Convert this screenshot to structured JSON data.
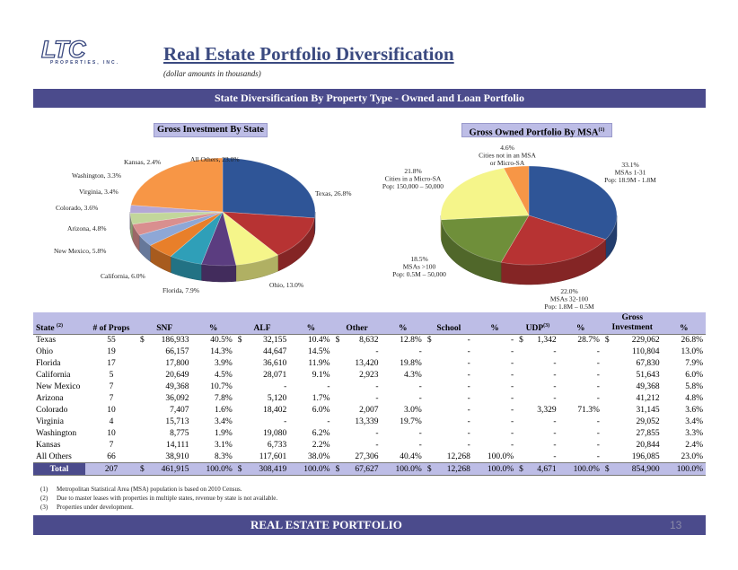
{
  "logo": {
    "brand": "LTC",
    "tagline": "PROPERTIES, INC."
  },
  "title": "Real Estate Portfolio Diversification",
  "subtitle": "(dollar amounts in thousands)",
  "banner": "State Diversification By Property Type - Owned and Loan Portfolio",
  "chart_data": [
    {
      "type": "pie",
      "title": "Gross Investment By State",
      "slices": [
        {
          "label": "Texas, 26.8%",
          "value": 26.8,
          "color": "#2f5597"
        },
        {
          "label": "Ohio, 13.0%",
          "value": 13.0,
          "color": "#b73333"
        },
        {
          "label": "Florida, 7.9%",
          "value": 7.9,
          "color": "#f5f58a"
        },
        {
          "label": "California, 6.0%",
          "value": 6.0,
          "color": "#5b3d80"
        },
        {
          "label": "New Mexico, 5.8%",
          "value": 5.8,
          "color": "#2f9fb8"
        },
        {
          "label": "Arizona, 4.8%",
          "value": 4.8,
          "color": "#e87f2a"
        },
        {
          "label": "Colorado, 3.6%",
          "value": 3.6,
          "color": "#8ea7d6"
        },
        {
          "label": "Virginia, 3.4%",
          "value": 3.4,
          "color": "#d98f8f"
        },
        {
          "label": "Washington, 3.3%",
          "value": 3.3,
          "color": "#c2d69b"
        },
        {
          "label": "Kansas, 2.4%",
          "value": 2.4,
          "color": "#b4a7d6"
        },
        {
          "label": "All Others, 23.0%",
          "value": 23.0,
          "color": "#f79646"
        }
      ]
    },
    {
      "type": "pie",
      "title": "Gross Owned Portfolio By MSA",
      "title_sup": "(1)",
      "slices": [
        {
          "label": [
            "33.1%",
            "MSAs 1-31",
            "Pop: 18.9M - 1.8M"
          ],
          "value": 33.1,
          "color": "#2f5597"
        },
        {
          "label": [
            "22.0%",
            "MSAs 32-100",
            "Pop: 1.8M – 0.5M"
          ],
          "value": 22.0,
          "color": "#b73333"
        },
        {
          "label": [
            "18.5%",
            "MSAs >100",
            "Pop: 0.5M – 50,000"
          ],
          "value": 18.5,
          "color": "#6f8f3a"
        },
        {
          "label": [
            "21.8%",
            "Cities in a Micro-SA",
            "Pop: 150,000 – 50,000"
          ],
          "value": 21.8,
          "color": "#f5f58a"
        },
        {
          "label": [
            "4.6%",
            "Cities not in an MSA",
            "or Micro-SA"
          ],
          "value": 4.6,
          "color": "#f79646"
        }
      ]
    }
  ],
  "table": {
    "headers": {
      "state": "State",
      "state_sup": "(2)",
      "props": "# of Props",
      "snf": "SNF",
      "pct": "%",
      "alf": "ALF",
      "other": "Other",
      "school": "School",
      "udp": "UDP",
      "udp_sup": "(3)",
      "gross_line1": "Gross",
      "gross_line2": "Investment"
    },
    "rows": [
      [
        "Texas",
        "55",
        "$",
        "186,933",
        "40.5%",
        "$",
        "32,155",
        "10.4%",
        "$",
        "8,632",
        "12.8%",
        "$",
        "-",
        "-",
        "$",
        "1,342",
        "28.7%",
        "$",
        "229,062",
        "26.8%"
      ],
      [
        "Ohio",
        "19",
        "",
        "66,157",
        "14.3%",
        "",
        "44,647",
        "14.5%",
        "",
        "-",
        "-",
        "",
        "-",
        "-",
        "",
        "-",
        "-",
        "",
        "110,804",
        "13.0%"
      ],
      [
        "Florida",
        "17",
        "",
        "17,800",
        "3.9%",
        "",
        "36,610",
        "11.9%",
        "",
        "13,420",
        "19.8%",
        "",
        "-",
        "-",
        "",
        "-",
        "-",
        "",
        "67,830",
        "7.9%"
      ],
      [
        "California",
        "5",
        "",
        "20,649",
        "4.5%",
        "",
        "28,071",
        "9.1%",
        "",
        "2,923",
        "4.3%",
        "",
        "-",
        "-",
        "",
        "-",
        "-",
        "",
        "51,643",
        "6.0%"
      ],
      [
        "New Mexico",
        "7",
        "",
        "49,368",
        "10.7%",
        "",
        "-",
        "-",
        "",
        "-",
        "-",
        "",
        "-",
        "-",
        "",
        "-",
        "-",
        "",
        "49,368",
        "5.8%"
      ],
      [
        "Arizona",
        "7",
        "",
        "36,092",
        "7.8%",
        "",
        "5,120",
        "1.7%",
        "",
        "-",
        "-",
        "",
        "-",
        "-",
        "",
        "-",
        "-",
        "",
        "41,212",
        "4.8%"
      ],
      [
        "Colorado",
        "10",
        "",
        "7,407",
        "1.6%",
        "",
        "18,402",
        "6.0%",
        "",
        "2,007",
        "3.0%",
        "",
        "-",
        "-",
        "",
        "3,329",
        "71.3%",
        "",
        "31,145",
        "3.6%"
      ],
      [
        "Virginia",
        "4",
        "",
        "15,713",
        "3.4%",
        "",
        "-",
        "-",
        "",
        "13,339",
        "19.7%",
        "",
        "-",
        "-",
        "",
        "-",
        "-",
        "",
        "29,052",
        "3.4%"
      ],
      [
        "Washington",
        "10",
        "",
        "8,775",
        "1.9%",
        "",
        "19,080",
        "6.2%",
        "",
        "-",
        "-",
        "",
        "-",
        "-",
        "",
        "-",
        "-",
        "",
        "27,855",
        "3.3%"
      ],
      [
        "Kansas",
        "7",
        "",
        "14,111",
        "3.1%",
        "",
        "6,733",
        "2.2%",
        "",
        "-",
        "-",
        "",
        "-",
        "-",
        "",
        "-",
        "-",
        "",
        "20,844",
        "2.4%"
      ],
      [
        "All Others",
        "66",
        "",
        "38,910",
        "8.3%",
        "",
        "117,601",
        "38.0%",
        "",
        "27,306",
        "40.4%",
        "",
        "12,268",
        "100.0%",
        "",
        "-",
        "-",
        "",
        "196,085",
        "23.0%"
      ]
    ],
    "total": [
      "Total",
      "207",
      "$",
      "461,915",
      "100.0%",
      "$",
      "308,419",
      "100.0%",
      "$",
      "67,627",
      "100.0%",
      "$",
      "12,268",
      "100.0%",
      "$",
      "4,671",
      "100.0%",
      "$",
      "854,900",
      "100.0%"
    ]
  },
  "notes": [
    {
      "num": "(1)",
      "text": "Metropolitan Statistical Area (MSA) population is based on 2010 Census."
    },
    {
      "num": "(2)",
      "text": "Due to master leases with properties in multiple states, revenue by state is not available."
    },
    {
      "num": "(3)",
      "text": "Properties under development."
    }
  ],
  "footer": "REAL ESTATE PORTFOLIO",
  "page_number": "13"
}
